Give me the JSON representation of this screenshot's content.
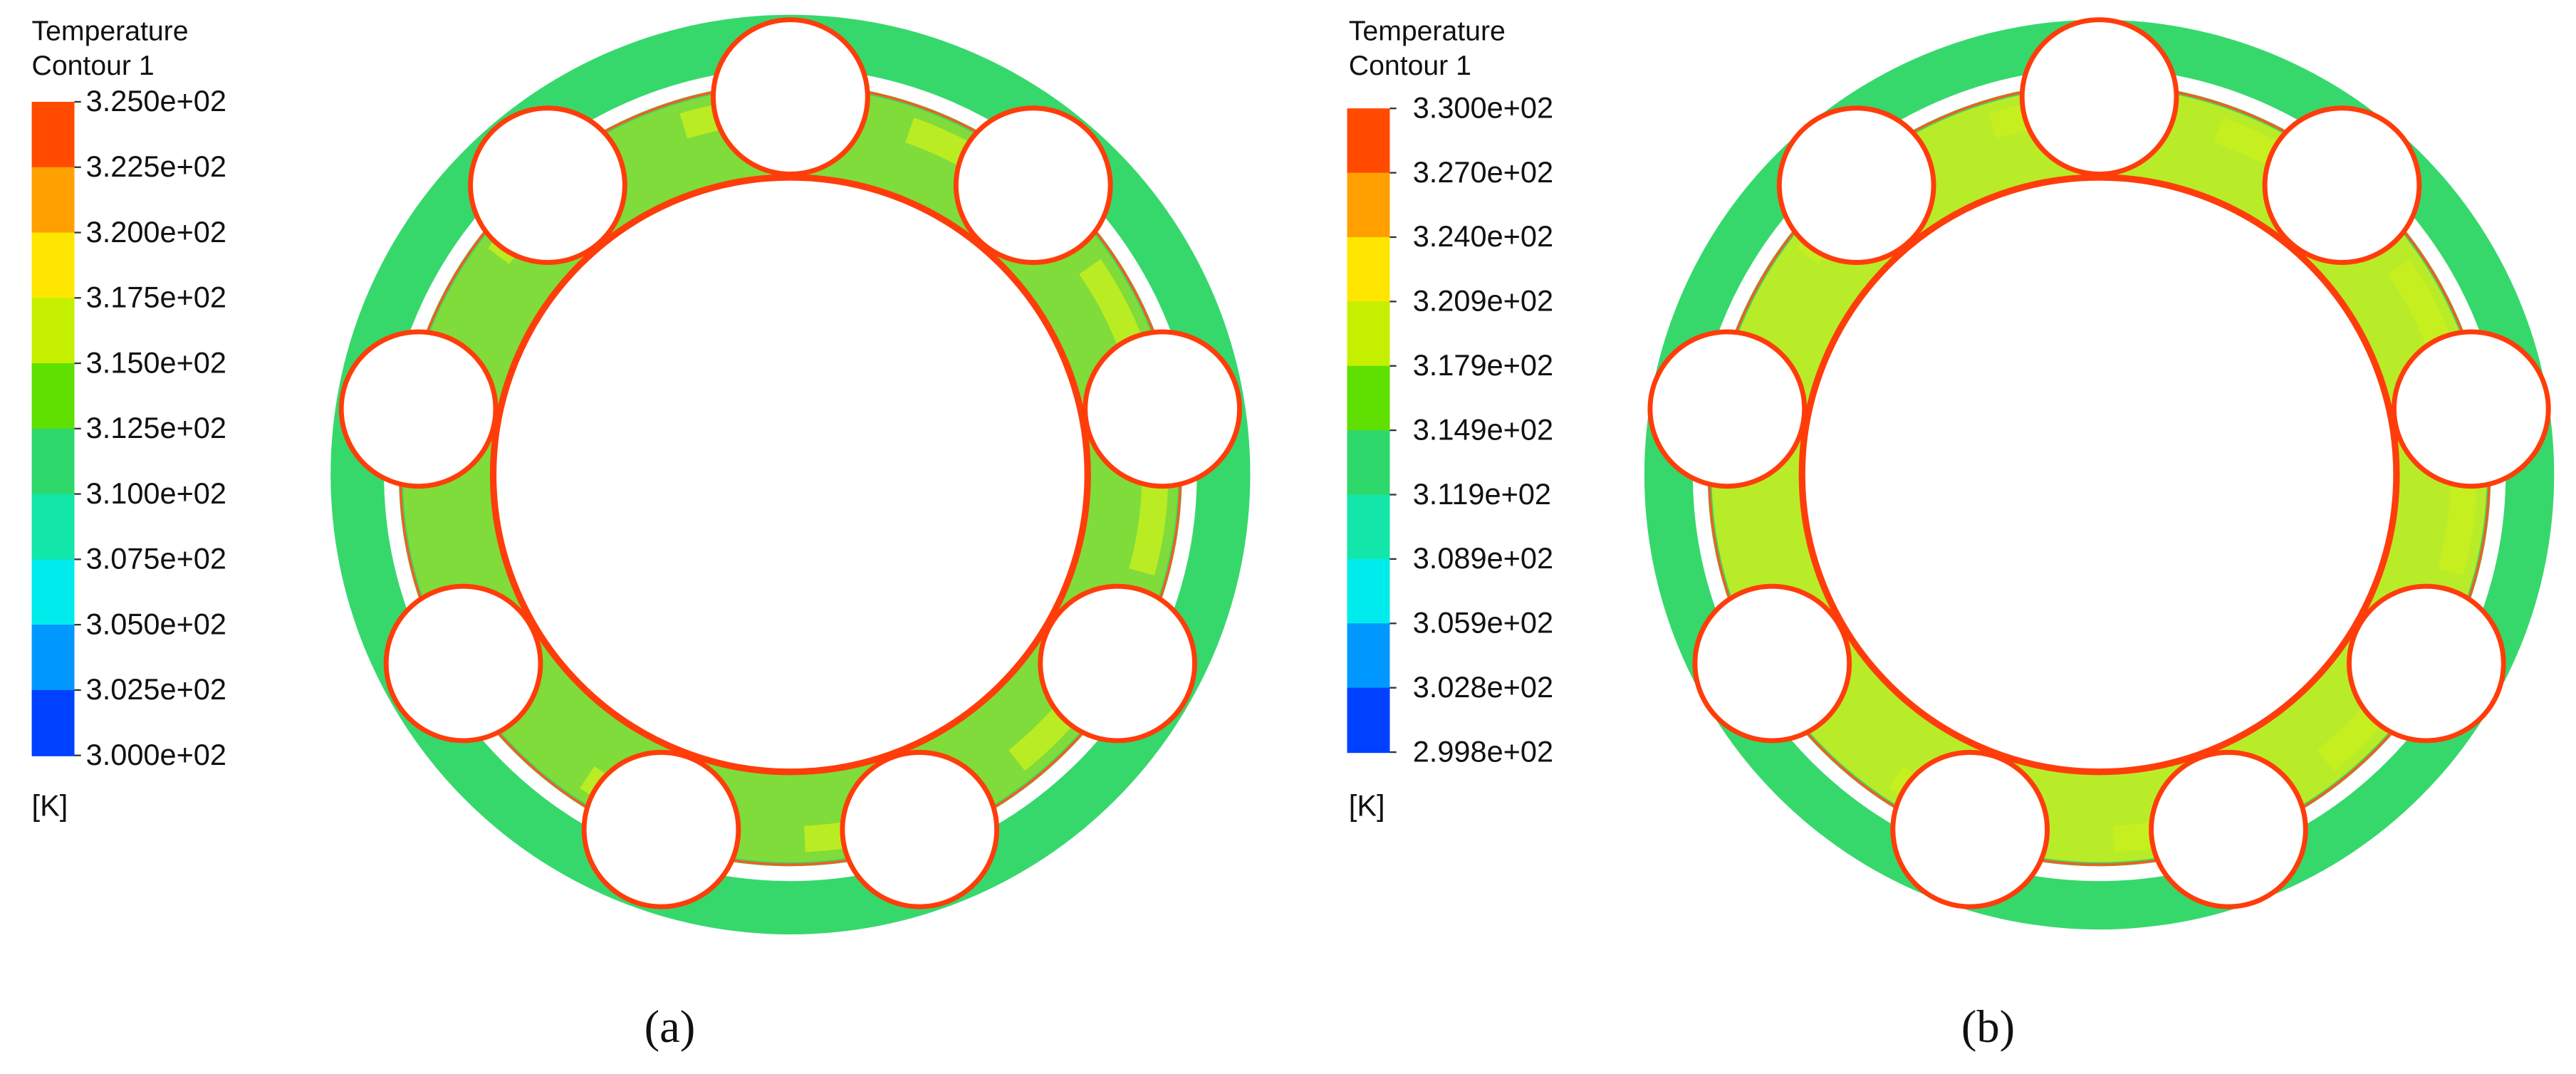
{
  "panels": [
    {
      "legend": {
        "title": "Temperature",
        "subtitle": "Contour 1",
        "labels": [
          "3.250e+02",
          "3.225e+02",
          "3.200e+02",
          "3.175e+02",
          "3.150e+02",
          "3.125e+02",
          "3.100e+02",
          "3.075e+02",
          "3.050e+02",
          "3.025e+02",
          "3.000e+02"
        ],
        "unit": "[K]"
      },
      "caption": "(a)"
    },
    {
      "legend": {
        "title": "Temperature",
        "subtitle": "Contour 1",
        "labels": [
          "3.300e+02",
          "3.270e+02",
          "3.240e+02",
          "3.209e+02",
          "3.179e+02",
          "3.149e+02",
          "3.119e+02",
          "3.089e+02",
          "3.059e+02",
          "3.028e+02",
          "2.998e+02"
        ],
        "unit": "[K]"
      },
      "caption": "(b)"
    }
  ]
}
